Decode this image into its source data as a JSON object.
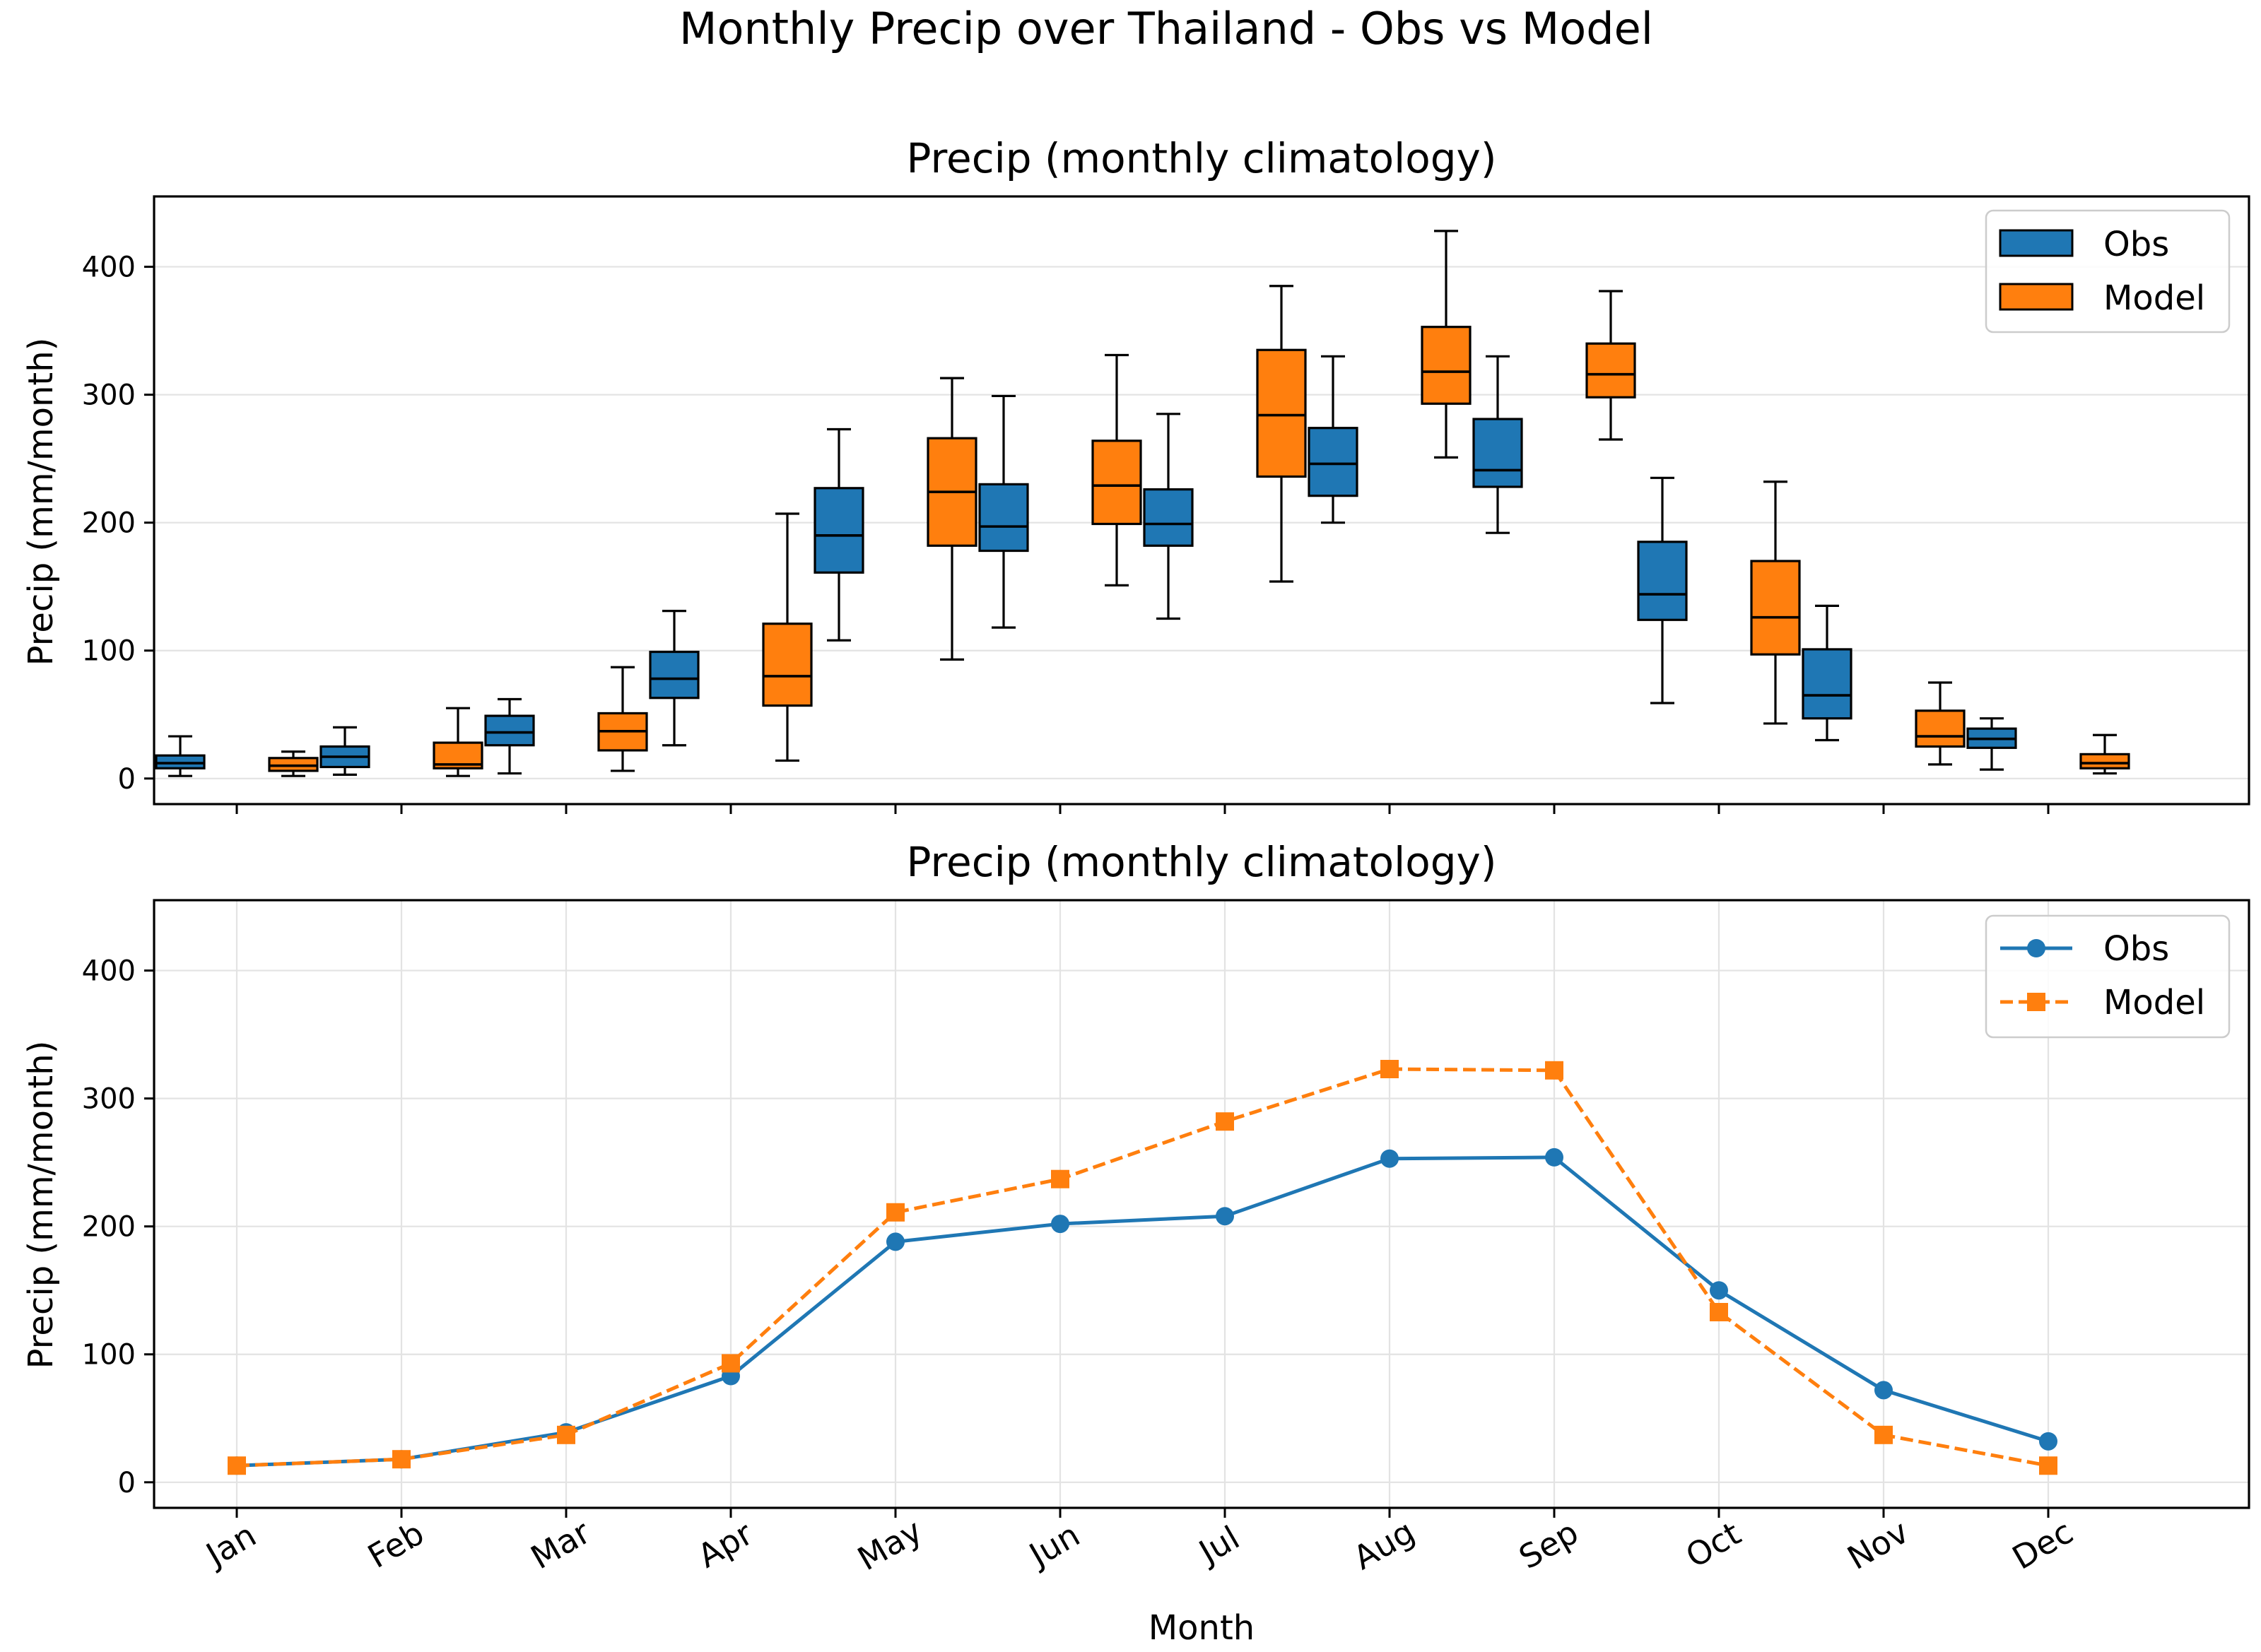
{
  "figure": {
    "suptitle": "Monthly Precip over Thailand - Obs vs Model"
  },
  "chart_data": [
    {
      "type": "box",
      "title": "Precip (monthly climatology)",
      "xlabel": "",
      "ylabel": "Precip (mm/month)",
      "ylim": [
        -20,
        455
      ],
      "yticks": [
        0,
        100,
        200,
        300,
        400
      ],
      "categories": [
        "Jan",
        "Feb",
        "Mar",
        "Apr",
        "May",
        "Jun",
        "Jul",
        "Aug",
        "Sep",
        "Oct",
        "Nov",
        "Dec"
      ],
      "grid": "horizontal",
      "legend_placement": "top-right",
      "series": [
        {
          "name": "Obs",
          "color": "#1f77b4",
          "stats": [
            {
              "whislo": 2,
              "q1": 8,
              "med": 12,
              "q3": 18,
              "whishi": 33
            },
            {
              "whislo": 3,
              "q1": 9,
              "med": 17,
              "q3": 25,
              "whishi": 40
            },
            {
              "whislo": 4,
              "q1": 26,
              "med": 36,
              "q3": 49,
              "whishi": 62
            },
            {
              "whislo": 26,
              "q1": 63,
              "med": 78,
              "q3": 99,
              "whishi": 131
            },
            {
              "whislo": 108,
              "q1": 161,
              "med": 190,
              "q3": 227,
              "whishi": 273
            },
            {
              "whislo": 118,
              "q1": 178,
              "med": 197,
              "q3": 230,
              "whishi": 299
            },
            {
              "whislo": 125,
              "q1": 182,
              "med": 199,
              "q3": 226,
              "whishi": 285
            },
            {
              "whislo": 200,
              "q1": 221,
              "med": 246,
              "q3": 274,
              "whishi": 330
            },
            {
              "whislo": 192,
              "q1": 228,
              "med": 241,
              "q3": 281,
              "whishi": 330
            },
            {
              "whislo": 59,
              "q1": 124,
              "med": 144,
              "q3": 185,
              "whishi": 235
            },
            {
              "whislo": 30,
              "q1": 47,
              "med": 65,
              "q3": 101,
              "whishi": 135
            },
            {
              "whislo": 7,
              "q1": 24,
              "med": 31,
              "q3": 39,
              "whishi": 47
            }
          ]
        },
        {
          "name": "Model",
          "color": "#ff7f0e",
          "stats": [
            {
              "whislo": 2,
              "q1": 6,
              "med": 10,
              "q3": 16,
              "whishi": 21
            },
            {
              "whislo": 2,
              "q1": 8,
              "med": 11,
              "q3": 28,
              "whishi": 55
            },
            {
              "whislo": 6,
              "q1": 22,
              "med": 37,
              "q3": 51,
              "whishi": 87
            },
            {
              "whislo": 14,
              "q1": 57,
              "med": 80,
              "q3": 121,
              "whishi": 207
            },
            {
              "whislo": 93,
              "q1": 182,
              "med": 224,
              "q3": 266,
              "whishi": 313
            },
            {
              "whislo": 151,
              "q1": 199,
              "med": 229,
              "q3": 264,
              "whishi": 331
            },
            {
              "whislo": 154,
              "q1": 236,
              "med": 284,
              "q3": 335,
              "whishi": 385
            },
            {
              "whislo": 251,
              "q1": 293,
              "med": 318,
              "q3": 353,
              "whishi": 428
            },
            {
              "whislo": 265,
              "q1": 298,
              "med": 316,
              "q3": 340,
              "whishi": 381
            },
            {
              "whislo": 43,
              "q1": 97,
              "med": 126,
              "q3": 170,
              "whishi": 232
            },
            {
              "whislo": 11,
              "q1": 25,
              "med": 33,
              "q3": 53,
              "whishi": 75
            },
            {
              "whislo": 4,
              "q1": 8,
              "med": 12,
              "q3": 19,
              "whishi": 34
            }
          ]
        }
      ]
    },
    {
      "type": "line",
      "title": "Precip (monthly climatology)",
      "xlabel": "Month",
      "ylabel": "Precip (mm/month)",
      "ylim": [
        -20,
        455
      ],
      "yticks": [
        0,
        100,
        200,
        300,
        400
      ],
      "categories": [
        "Jan",
        "Feb",
        "Mar",
        "Apr",
        "May",
        "Jun",
        "Jul",
        "Aug",
        "Sep",
        "Oct",
        "Nov",
        "Dec"
      ],
      "grid": "both",
      "legend_placement": "top-right",
      "series": [
        {
          "name": "Obs",
          "color": "#1f77b4",
          "linestyle": "solid",
          "marker": "circle",
          "values": [
            13,
            18,
            39,
            83,
            188,
            202,
            208,
            253,
            254,
            150,
            72,
            32
          ]
        },
        {
          "name": "Model",
          "color": "#ff7f0e",
          "linestyle": "dashed",
          "marker": "square",
          "values": [
            13,
            18,
            37,
            93,
            211,
            237,
            282,
            323,
            322,
            133,
            37,
            13
          ]
        }
      ]
    }
  ]
}
